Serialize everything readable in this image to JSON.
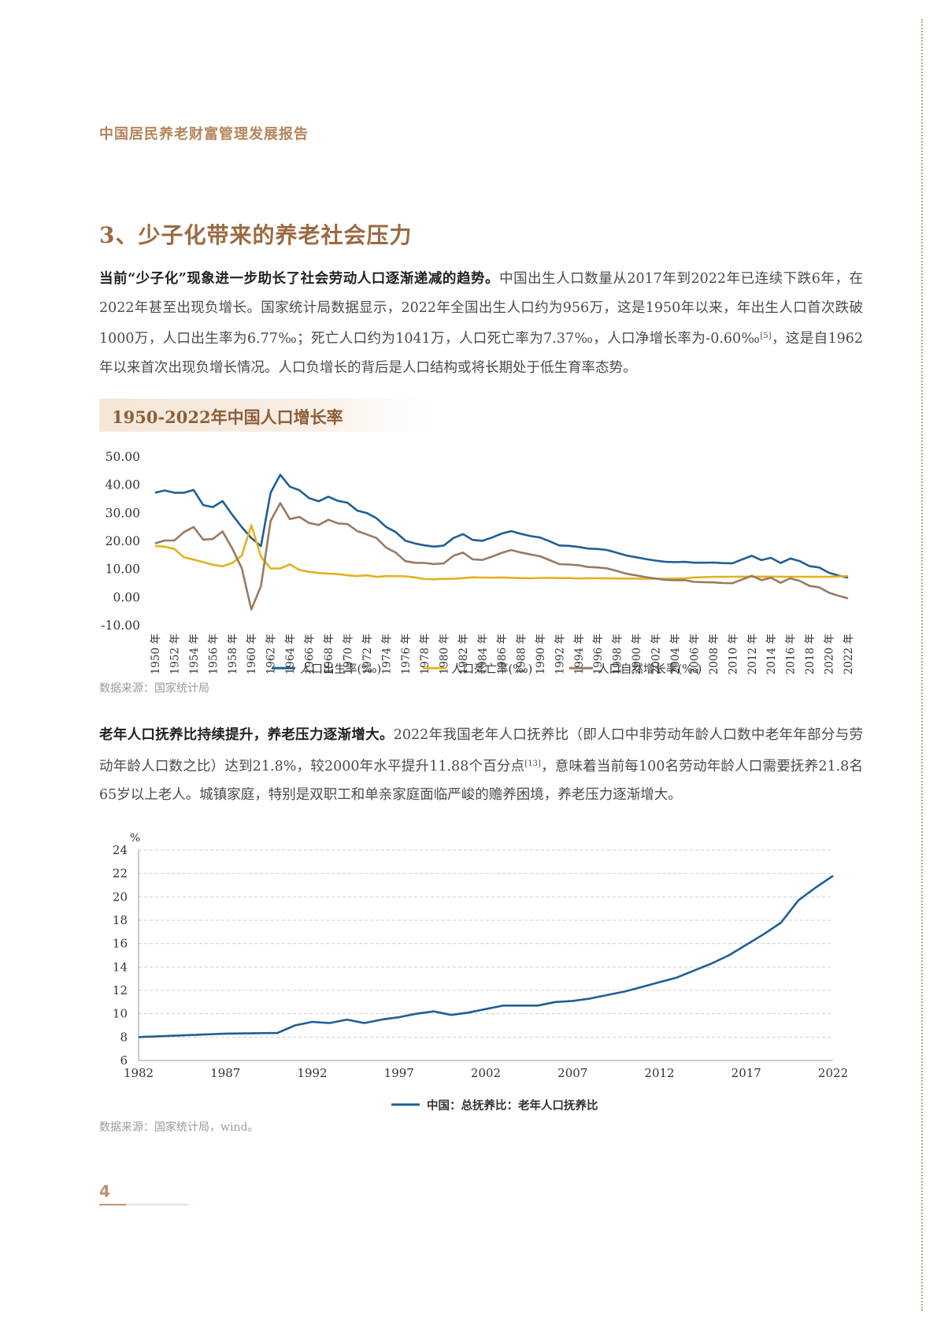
{
  "header": {
    "running_title": "中国居民养老财富管理发展报告"
  },
  "section": {
    "title": "3、少子化带来的养老社会压力"
  },
  "paragraph1": {
    "lead": "当前“少子化”现象进一步助长了社会劳动人口逐渐递减的趋势。",
    "body_a": "中国出生人口数量从2017年到2022年已连续下跌6年，在2022年甚至出现负增长。国家统计局数据显示，2022年全国出生人口约为956万，这是1950年以来，年出生人口首次跌破1000万，人口出生率为6.77‰；死亡人口约为1041万，人口死亡率为7.37‰，人口净增长率为-0.60‰",
    "ref": "[5]",
    "body_b": "，这是自1962年以来首次出现负增长情况。人口负增长的背后是人口结构或将长期处于低生育率态势。"
  },
  "chart1_title": "1950-2022年中国人口增长率",
  "source1": "数据来源：国家统计局",
  "paragraph2": {
    "lead": "老年人口抚养比持续提升，养老压力逐渐增大。",
    "body_a": "2022年我国老年人口抚养比（即人口中非劳动年龄人口数中老年年部分与劳动年龄人口数之比）达到21.8%，较2000年水平提升11.88个百分点",
    "ref": "[13]",
    "body_b": "，意味着当前每100名劳动年龄人口需要抚养21.8名65岁以上老人。城镇家庭，特别是双职工和单亲家庭面临严峻的赡养困境，养老压力逐渐增大。"
  },
  "source2": "数据来源：国家统计局，wind。",
  "page_number": "4",
  "colors": {
    "birth": "#1f5f94",
    "death": "#e3b21c",
    "natural": "#9a7a60",
    "accent": "#b5845a"
  },
  "chart_data": [
    {
      "type": "line",
      "title": "",
      "ylim": [
        -10,
        50
      ],
      "y_ticks": [
        "50.00",
        "40.00",
        "30.00",
        "20.00",
        "10.00",
        "0.00",
        "-10.00"
      ],
      "grid": false,
      "legend_position": "bottom",
      "x_tick_suffix": "年",
      "x": [
        1950,
        1951,
        1952,
        1953,
        1954,
        1955,
        1956,
        1957,
        1958,
        1959,
        1960,
        1961,
        1962,
        1963,
        1964,
        1965,
        1966,
        1967,
        1968,
        1969,
        1970,
        1971,
        1972,
        1973,
        1974,
        1975,
        1976,
        1977,
        1978,
        1979,
        1980,
        1981,
        1982,
        1983,
        1984,
        1985,
        1986,
        1987,
        1988,
        1989,
        1990,
        1991,
        1992,
        1993,
        1994,
        1995,
        1996,
        1997,
        1998,
        1999,
        2000,
        2001,
        2002,
        2003,
        2004,
        2005,
        2006,
        2007,
        2008,
        2009,
        2010,
        2011,
        2012,
        2013,
        2014,
        2015,
        2016,
        2017,
        2018,
        2019,
        2020,
        2021,
        2022
      ],
      "series": [
        {
          "name": "人口出生率(‰)",
          "color": "#1f5f94",
          "values": [
            37,
            37.8,
            37,
            37,
            37.97,
            32.6,
            31.9,
            34.03,
            29.22,
            24.78,
            20.86,
            18.02,
            37.01,
            43.37,
            39.14,
            37.88,
            35.05,
            33.96,
            35.59,
            34.11,
            33.43,
            30.65,
            29.77,
            27.93,
            24.82,
            23.01,
            19.91,
            18.93,
            18.25,
            17.82,
            18.21,
            20.91,
            22.28,
            20.19,
            19.9,
            21.04,
            22.43,
            23.33,
            22.37,
            21.58,
            21.06,
            19.68,
            18.24,
            18.09,
            17.7,
            17.12,
            16.98,
            16.57,
            15.64,
            14.64,
            14.03,
            13.38,
            12.86,
            12.41,
            12.29,
            12.4,
            12.09,
            12.1,
            12.14,
            11.95,
            11.9,
            13.27,
            14.57,
            13.03,
            13.83,
            11.99,
            13.57,
            12.64,
            10.86,
            10.41,
            8.52,
            7.52,
            6.77
          ]
        },
        {
          "name": "人口死亡率(‰)",
          "color": "#e3b21c",
          "values": [
            18,
            17.8,
            17,
            14,
            13.18,
            12.28,
            11.4,
            10.8,
            11.98,
            14.59,
            25.43,
            14.24,
            10.02,
            10.04,
            11.5,
            9.5,
            8.83,
            8.43,
            8.21,
            8.03,
            7.6,
            7.32,
            7.61,
            7.04,
            7.34,
            7.32,
            7.25,
            6.87,
            6.25,
            6.21,
            6.34,
            6.36,
            6.6,
            6.9,
            6.82,
            6.78,
            6.86,
            6.72,
            6.64,
            6.54,
            6.67,
            6.7,
            6.64,
            6.64,
            6.49,
            6.57,
            6.56,
            6.51,
            6.5,
            6.46,
            6.45,
            6.43,
            6.41,
            6.4,
            6.42,
            6.51,
            6.81,
            6.93,
            7.06,
            7.08,
            7.11,
            7.14,
            7.13,
            7.13,
            7.12,
            7.11,
            7.09,
            7.11,
            7.08,
            7.09,
            7.07,
            7.18,
            7.37
          ]
        },
        {
          "name": "人口自然增长率(‰)",
          "color": "#9a7a60",
          "values": [
            19,
            20,
            20,
            23,
            24.79,
            20.32,
            20.5,
            23.23,
            17.24,
            10.19,
            -4.57,
            3.78,
            26.99,
            33.33,
            27.64,
            28.38,
            26.22,
            25.53,
            27.38,
            26.08,
            25.83,
            23.33,
            22.16,
            20.89,
            17.48,
            15.69,
            12.66,
            12.06,
            12,
            11.61,
            11.87,
            14.55,
            15.68,
            13.29,
            13.08,
            14.26,
            15.57,
            16.61,
            15.73,
            15.04,
            14.39,
            12.98,
            11.6,
            11.45,
            11.21,
            10.55,
            10.42,
            10.06,
            9.14,
            8.18,
            7.58,
            6.95,
            6.45,
            6.01,
            5.87,
            5.89,
            5.28,
            5.17,
            5.08,
            4.87,
            4.79,
            6.13,
            7.43,
            5.9,
            6.71,
            4.93,
            6.53,
            5.58,
            3.81,
            3.34,
            1.45,
            0.34,
            -0.6
          ]
        }
      ]
    },
    {
      "type": "line",
      "title": "",
      "ylabel": "%",
      "ylim": [
        6,
        24
      ],
      "y_ticks": [
        6,
        8,
        10,
        12,
        14,
        16,
        18,
        20,
        22,
        24
      ],
      "x_ticks": [
        1982,
        1987,
        1992,
        1997,
        2002,
        2007,
        2012,
        2017,
        2022
      ],
      "grid": true,
      "legend_position": "bottom",
      "x": [
        1982,
        1987,
        1990,
        1991,
        1992,
        1993,
        1994,
        1995,
        1996,
        1997,
        1998,
        1999,
        2000,
        2001,
        2002,
        2003,
        2004,
        2005,
        2006,
        2007,
        2008,
        2009,
        2010,
        2011,
        2012,
        2013,
        2014,
        2015,
        2016,
        2017,
        2018,
        2019,
        2020,
        2021,
        2022
      ],
      "series": [
        {
          "name": "中国：总抚养比：老年人口抚养比",
          "color": "#1f5f94",
          "values": [
            8.0,
            8.3,
            8.35,
            9.0,
            9.3,
            9.2,
            9.5,
            9.2,
            9.5,
            9.7,
            10.0,
            10.2,
            9.9,
            10.1,
            10.4,
            10.7,
            10.7,
            10.7,
            11.0,
            11.1,
            11.3,
            11.6,
            11.9,
            12.3,
            12.7,
            13.1,
            13.7,
            14.3,
            15.0,
            15.9,
            16.8,
            17.8,
            19.7,
            20.8,
            21.8
          ]
        }
      ]
    }
  ]
}
